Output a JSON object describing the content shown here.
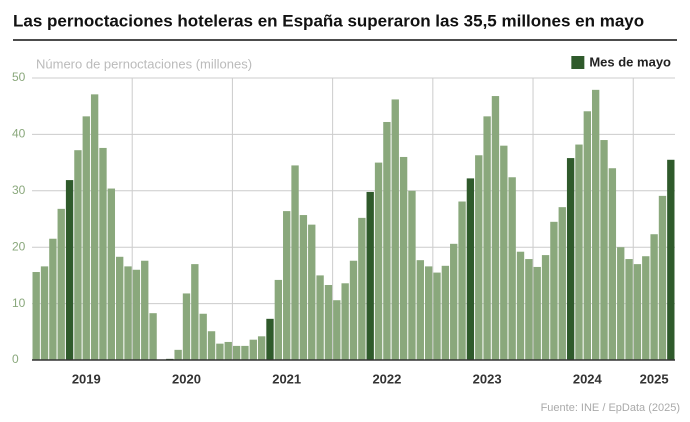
{
  "chart_data": {
    "type": "bar",
    "title": "Las pernoctaciones hoteleras en España superaron las 35,5 millones en mayo",
    "y_label": "Número de pernoctaciones (millones)",
    "source": "Fuente: INE / EpData (2025)",
    "categories": [
      null,
      null,
      null,
      null,
      null,
      null,
      "2019",
      null,
      null,
      null,
      null,
      null,
      null,
      null,
      null,
      null,
      null,
      null,
      "2020",
      null,
      null,
      null,
      null,
      null,
      null,
      null,
      null,
      null,
      null,
      null,
      "2021",
      null,
      null,
      null,
      null,
      null,
      null,
      null,
      null,
      null,
      null,
      null,
      "2022",
      null,
      null,
      null,
      null,
      null,
      null,
      null,
      null,
      null,
      null,
      null,
      "2023",
      null,
      null,
      null,
      null,
      null,
      null,
      null,
      null,
      null,
      null,
      null,
      "2024",
      null,
      null,
      null,
      null,
      null,
      null,
      null,
      "2025",
      null,
      null
    ],
    "series": [
      {
        "color": "#8aa87c",
        "values": [
          15.6,
          16.6,
          21.5,
          26.8,
          null,
          37.2,
          43.2,
          47.1,
          37.6,
          30.4,
          18.3,
          16.6,
          16.0,
          17.6,
          8.3,
          0.0,
          null,
          1.8,
          11.8,
          17.0,
          8.2,
          5.1,
          2.9,
          3.2,
          2.5,
          2.5,
          3.6,
          4.2,
          null,
          14.2,
          26.4,
          34.5,
          25.7,
          24.0,
          15.0,
          13.3,
          10.6,
          13.6,
          17.6,
          25.2,
          null,
          35.0,
          42.2,
          46.2,
          36.0,
          30.0,
          17.7,
          16.6,
          15.5,
          16.7,
          20.6,
          28.1,
          null,
          36.3,
          43.2,
          46.8,
          38.0,
          32.4,
          19.2,
          17.9,
          16.5,
          18.6,
          24.5,
          27.1,
          null,
          38.2,
          44.1,
          47.9,
          39.0,
          34.0,
          20.0,
          17.9,
          17.0,
          18.4,
          22.3,
          29.1,
          null
        ]
      },
      {
        "name": "Mes de mayo",
        "color": "#2f5a2b",
        "values": [
          null,
          null,
          null,
          null,
          31.9,
          null,
          null,
          null,
          null,
          null,
          null,
          null,
          null,
          null,
          null,
          null,
          0.2,
          null,
          null,
          null,
          null,
          null,
          null,
          null,
          null,
          null,
          null,
          null,
          7.3,
          null,
          null,
          null,
          null,
          null,
          null,
          null,
          null,
          null,
          null,
          null,
          29.8,
          null,
          null,
          null,
          null,
          null,
          null,
          null,
          null,
          null,
          null,
          null,
          32.2,
          null,
          null,
          null,
          null,
          null,
          null,
          null,
          null,
          null,
          null,
          null,
          35.8,
          null,
          null,
          null,
          null,
          null,
          null,
          null,
          null,
          null,
          null,
          null,
          35.5
        ]
      }
    ],
    "ylim": [
      0,
      50
    ],
    "yticks": [
      0,
      10,
      20,
      30,
      40,
      50
    ],
    "grid": true,
    "legend": "top-right"
  }
}
